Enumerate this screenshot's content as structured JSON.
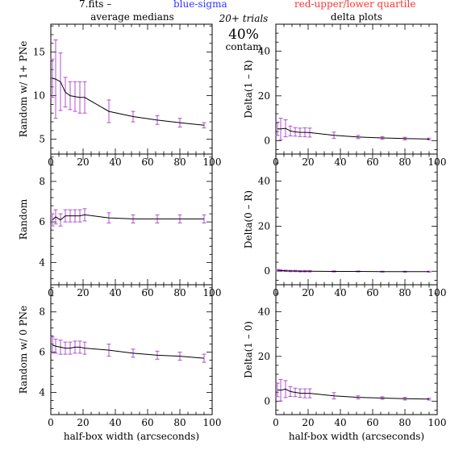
{
  "header": {
    "file_label": "7.fits  –",
    "blue_label": "blue-sigma",
    "red_label": "red-upper/lower quartile",
    "left_column_title": "average medians",
    "right_column_title": "delta plots",
    "trials": "20+ trials",
    "contam_percent": "40%",
    "contam_word": "contam"
  },
  "colors": {
    "blue": "#3333ff",
    "red": "#ff3333",
    "errorbar": "#b050d0",
    "line": "#000000"
  },
  "chart_data": [
    {
      "type": "line",
      "id": "left-top",
      "ylabel": "Random w/ 1+ PNe",
      "xlabel": "",
      "xlim": [
        0,
        100
      ],
      "ylim": [
        3.3,
        18.2
      ],
      "xticks": [
        0,
        20,
        40,
        60,
        80,
        100
      ],
      "yticks": [
        5,
        10,
        15
      ],
      "x": [
        1,
        3,
        6,
        9,
        12,
        15,
        18,
        21,
        36,
        51,
        66,
        80,
        95
      ],
      "y": [
        12.0,
        11.9,
        11.6,
        10.4,
        10.0,
        9.9,
        9.8,
        9.8,
        8.2,
        7.6,
        7.2,
        6.9,
        6.6
      ],
      "err": [
        2.2,
        4.5,
        3.3,
        1.7,
        1.6,
        1.7,
        1.8,
        1.8,
        1.3,
        0.6,
        0.5,
        0.5,
        0.3
      ]
    },
    {
      "type": "line",
      "id": "right-top",
      "ylabel": "Delta(1 – R)",
      "xlabel": "",
      "xlim": [
        0,
        100
      ],
      "ylim": [
        -6,
        52
      ],
      "xticks": [
        0,
        20,
        40,
        60,
        80,
        100
      ],
      "yticks": [
        0,
        20,
        40
      ],
      "x": [
        1,
        3,
        6,
        9,
        12,
        15,
        18,
        21,
        36,
        51,
        66,
        80,
        95
      ],
      "y": [
        5.3,
        5.2,
        5.5,
        4.3,
        3.9,
        3.7,
        3.7,
        3.6,
        2.4,
        1.6,
        1.2,
        0.9,
        0.7
      ],
      "err": [
        3.0,
        4.8,
        3.8,
        2.2,
        1.9,
        1.9,
        2.0,
        2.0,
        1.4,
        0.7,
        0.6,
        0.6,
        0.4
      ]
    },
    {
      "type": "line",
      "id": "left-middle",
      "ylabel": "Random",
      "xlabel": "",
      "xlim": [
        0,
        100
      ],
      "ylim": [
        2.9,
        9.35
      ],
      "xticks": [
        0,
        20,
        40,
        60,
        80,
        100
      ],
      "yticks": [
        4,
        6,
        8
      ],
      "x": [
        1,
        3,
        6,
        9,
        12,
        15,
        18,
        21,
        36,
        51,
        66,
        80,
        95
      ],
      "y": [
        6.1,
        6.25,
        6.1,
        6.3,
        6.3,
        6.3,
        6.3,
        6.35,
        6.2,
        6.15,
        6.15,
        6.15,
        6.15
      ],
      "err": [
        0.3,
        0.35,
        0.3,
        0.3,
        0.3,
        0.3,
        0.3,
        0.3,
        0.25,
        0.2,
        0.2,
        0.2,
        0.2
      ]
    },
    {
      "type": "line",
      "id": "right-middle",
      "ylabel": "Delta(0 – R)",
      "xlabel": "",
      "xlim": [
        0,
        100
      ],
      "ylim": [
        -6,
        52
      ],
      "xticks": [
        0,
        20,
        40,
        60,
        80,
        100
      ],
      "yticks": [
        0,
        20,
        40
      ],
      "x": [
        1,
        3,
        6,
        9,
        12,
        15,
        18,
        21,
        36,
        51,
        66,
        80,
        95
      ],
      "y": [
        0.4,
        0.3,
        0.2,
        0.1,
        0.1,
        0.0,
        0.0,
        0.0,
        -0.1,
        -0.1,
        -0.2,
        -0.2,
        -0.2
      ],
      "err": [
        0.4,
        0.4,
        0.3,
        0.3,
        0.3,
        0.3,
        0.3,
        0.3,
        0.25,
        0.2,
        0.2,
        0.2,
        0.2
      ]
    },
    {
      "type": "line",
      "id": "left-bottom",
      "ylabel": "Random w/ 0 PNe",
      "xlabel": "half-box width (arcseconds)",
      "xlim": [
        0,
        100
      ],
      "ylim": [
        2.9,
        9.35
      ],
      "xticks": [
        0,
        20,
        40,
        60,
        80,
        100
      ],
      "yticks": [
        4,
        6,
        8
      ],
      "x": [
        1,
        3,
        6,
        9,
        12,
        15,
        18,
        21,
        36,
        51,
        66,
        80,
        95
      ],
      "y": [
        6.35,
        6.3,
        6.25,
        6.2,
        6.2,
        6.25,
        6.25,
        6.2,
        6.1,
        5.95,
        5.85,
        5.8,
        5.7
      ],
      "err": [
        0.4,
        0.35,
        0.35,
        0.3,
        0.3,
        0.3,
        0.3,
        0.3,
        0.3,
        0.2,
        0.2,
        0.2,
        0.2
      ]
    },
    {
      "type": "line",
      "id": "right-bottom",
      "ylabel": "Delta(1 – 0)",
      "xlabel": "half-box width (arcseconds)",
      "xlim": [
        0,
        100
      ],
      "ylim": [
        -6,
        52
      ],
      "xticks": [
        0,
        20,
        40,
        60,
        80,
        100
      ],
      "yticks": [
        0,
        20,
        40
      ],
      "x": [
        1,
        3,
        6,
        9,
        12,
        15,
        18,
        21,
        36,
        51,
        66,
        80,
        95
      ],
      "y": [
        5.0,
        4.9,
        5.4,
        4.3,
        3.9,
        3.6,
        3.5,
        3.5,
        2.4,
        1.7,
        1.4,
        1.1,
        0.9
      ],
      "err": [
        3.0,
        4.8,
        3.8,
        2.2,
        1.9,
        1.9,
        2.0,
        2.0,
        1.4,
        0.7,
        0.6,
        0.6,
        0.4
      ]
    }
  ]
}
